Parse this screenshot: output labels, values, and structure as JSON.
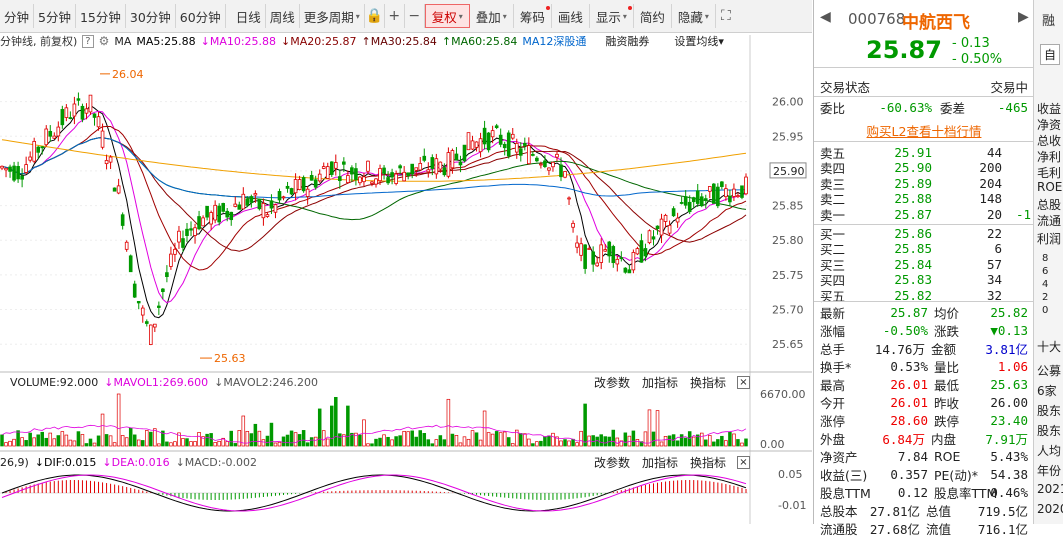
{
  "toolbar": {
    "periods": [
      "分钟",
      "5分钟",
      "15分钟",
      "30分钟",
      "60分钟",
      "日线",
      "周线",
      "更多周期"
    ],
    "more_dd": "▾",
    "icons": [
      "lock-icon",
      "plus-icon",
      "minus-icon"
    ],
    "buttons": [
      {
        "label": "复权",
        "active": true,
        "dd": true,
        "dot": false
      },
      {
        "label": "叠加",
        "active": false,
        "dd": true,
        "dot": false
      },
      {
        "label": "筹码",
        "active": false,
        "dd": false,
        "dot": true
      },
      {
        "label": "画线",
        "active": false,
        "dd": false,
        "dot": false
      },
      {
        "label": "显示",
        "active": false,
        "dd": true,
        "dot": true
      },
      {
        "label": "简约",
        "active": false,
        "dd": false,
        "dot": false
      },
      {
        "label": "隐藏",
        "active": false,
        "dd": true,
        "dot": false
      }
    ],
    "expand_icon": "⛶"
  },
  "indicators": {
    "title": "分钟线, 前复权)",
    "help": "?",
    "ma": "MA",
    "ma5": "MA5:25.88",
    "ma10": "MA10:25.88",
    "ma20": "MA20:25.87",
    "ma30": "MA30:25.84",
    "ma60": "MA60:25.84",
    "ma12": "MA12深股通",
    "margin": "融资融券",
    "settings": "设置均线▾"
  },
  "price_axis": [
    "26.00",
    "25.95",
    "25.90",
    "25.85",
    "25.80",
    "25.75",
    "25.70",
    "25.65"
  ],
  "price_marks": {
    "high": "26.04",
    "low": "25.63",
    "current": "25.90"
  },
  "volume": {
    "label": "VOLUME:92.000",
    "mavol1": "MAVOL1:269.600",
    "mavol2": "MAVOL2:246.200",
    "btn_params": "改参数",
    "btn_add": "加指标",
    "btn_switch": "换指标",
    "close": "×",
    "axis": [
      "6670.00",
      "0.00"
    ]
  },
  "macd": {
    "prefix": "26,9)",
    "dif": "DIF:0.015",
    "dea": "DEA:0.016",
    "macd": "MACD:-0.002",
    "btn_params": "改参数",
    "btn_add": "加指标",
    "btn_switch": "换指标",
    "close": "×",
    "axis": [
      "0.05",
      "-0.01"
    ]
  },
  "stock": {
    "code": "000768",
    "name": "中航西飞",
    "price": "25.87",
    "change": "- 0.13",
    "pct": "- 0.50%",
    "status_label": "交易状态",
    "status": "交易中",
    "weibi_label": "委比",
    "weibi": "-60.63%",
    "weicha_label": "委差",
    "weicha": "-465",
    "l2": "购买L2查看十档行情",
    "asks": [
      {
        "label": "卖五",
        "price": "25.91",
        "vol": "44",
        "chg": ""
      },
      {
        "label": "卖四",
        "price": "25.90",
        "vol": "200",
        "chg": ""
      },
      {
        "label": "卖三",
        "price": "25.89",
        "vol": "204",
        "chg": ""
      },
      {
        "label": "卖二",
        "price": "25.88",
        "vol": "148",
        "chg": ""
      },
      {
        "label": "卖一",
        "price": "25.87",
        "vol": "20",
        "chg": "-1"
      }
    ],
    "bids": [
      {
        "label": "买一",
        "price": "25.86",
        "vol": "22"
      },
      {
        "label": "买二",
        "price": "25.85",
        "vol": "6"
      },
      {
        "label": "买三",
        "price": "25.84",
        "vol": "57"
      },
      {
        "label": "买四",
        "price": "25.83",
        "vol": "34"
      },
      {
        "label": "买五",
        "price": "25.82",
        "vol": "32"
      }
    ],
    "stats": [
      {
        "l1": "最新",
        "v1": "25.87",
        "c1": "grn",
        "l2": "均价",
        "v2": "25.82",
        "c2": "grn"
      },
      {
        "l1": "涨幅",
        "v1": "-0.50%",
        "c1": "grn",
        "l2": "涨跌",
        "v2": "▼0.13",
        "c2": "grn"
      },
      {
        "l1": "总手",
        "v1": "14.76万",
        "c1": "",
        "l2": "金额",
        "v2": "3.81亿",
        "c2": "blu"
      },
      {
        "l1": "换手*",
        "v1": "0.53%",
        "c1": "",
        "l2": "量比",
        "v2": "1.06",
        "c2": "red"
      },
      {
        "l1": "最高",
        "v1": "26.01",
        "c1": "red",
        "l2": "最低",
        "v2": "25.63",
        "c2": "grn"
      },
      {
        "l1": "今开",
        "v1": "26.01",
        "c1": "red",
        "l2": "昨收",
        "v2": "26.00",
        "c2": ""
      },
      {
        "l1": "涨停",
        "v1": "28.60",
        "c1": "red",
        "l2": "跌停",
        "v2": "23.40",
        "c2": "grn"
      },
      {
        "l1": "外盘",
        "v1": "6.84万",
        "c1": "red",
        "l2": "内盘",
        "v2": "7.91万",
        "c2": "grn"
      },
      {
        "l1": "净资产",
        "v1": "7.84",
        "c1": "",
        "l2": "ROE",
        "v2": "5.43%",
        "c2": ""
      },
      {
        "l1": "收益(三)",
        "v1": "0.357",
        "c1": "",
        "l2": "PE(动)*",
        "v2": "54.38",
        "c2": ""
      },
      {
        "l1": "股息TTM",
        "v1": "0.12",
        "c1": "",
        "l2": "股息率TTM",
        "v2": "0.46%",
        "c2": ""
      },
      {
        "l1": "总股本",
        "v1": "27.81亿",
        "c1": "",
        "l2": "总值",
        "v2": "719.5亿",
        "c2": ""
      },
      {
        "l1": "流通股",
        "v1": "27.68亿",
        "c1": "",
        "l2": "流值",
        "v2": "716.1亿",
        "c2": ""
      }
    ]
  },
  "farright": {
    "btn1": "融",
    "btn2": "自",
    "lines": [
      "收益",
      "净资",
      "总收",
      "净利",
      "毛利",
      "ROE",
      "总股",
      "流通"
    ],
    "sec": "利润",
    "nums": [
      "8",
      "6",
      "4",
      "2",
      "0"
    ],
    "sec2": "十大",
    "lines2": [
      "公募",
      "6家",
      "股东",
      "股东",
      "人均",
      "年份",
      "2021",
      "2020"
    ]
  },
  "colors": {
    "up": "#e00000",
    "down": "#009900",
    "ma5": "#000000",
    "ma10": "#e000e0",
    "ma20": "#a00000",
    "ma30": "#8b0000",
    "ma60": "#006600",
    "ma120": "#0066cc"
  },
  "chart_data": {
    "type": "candlestick",
    "ylim": [
      25.62,
      26.06
    ],
    "high_label": "26.04",
    "low_label": "25.63"
  }
}
